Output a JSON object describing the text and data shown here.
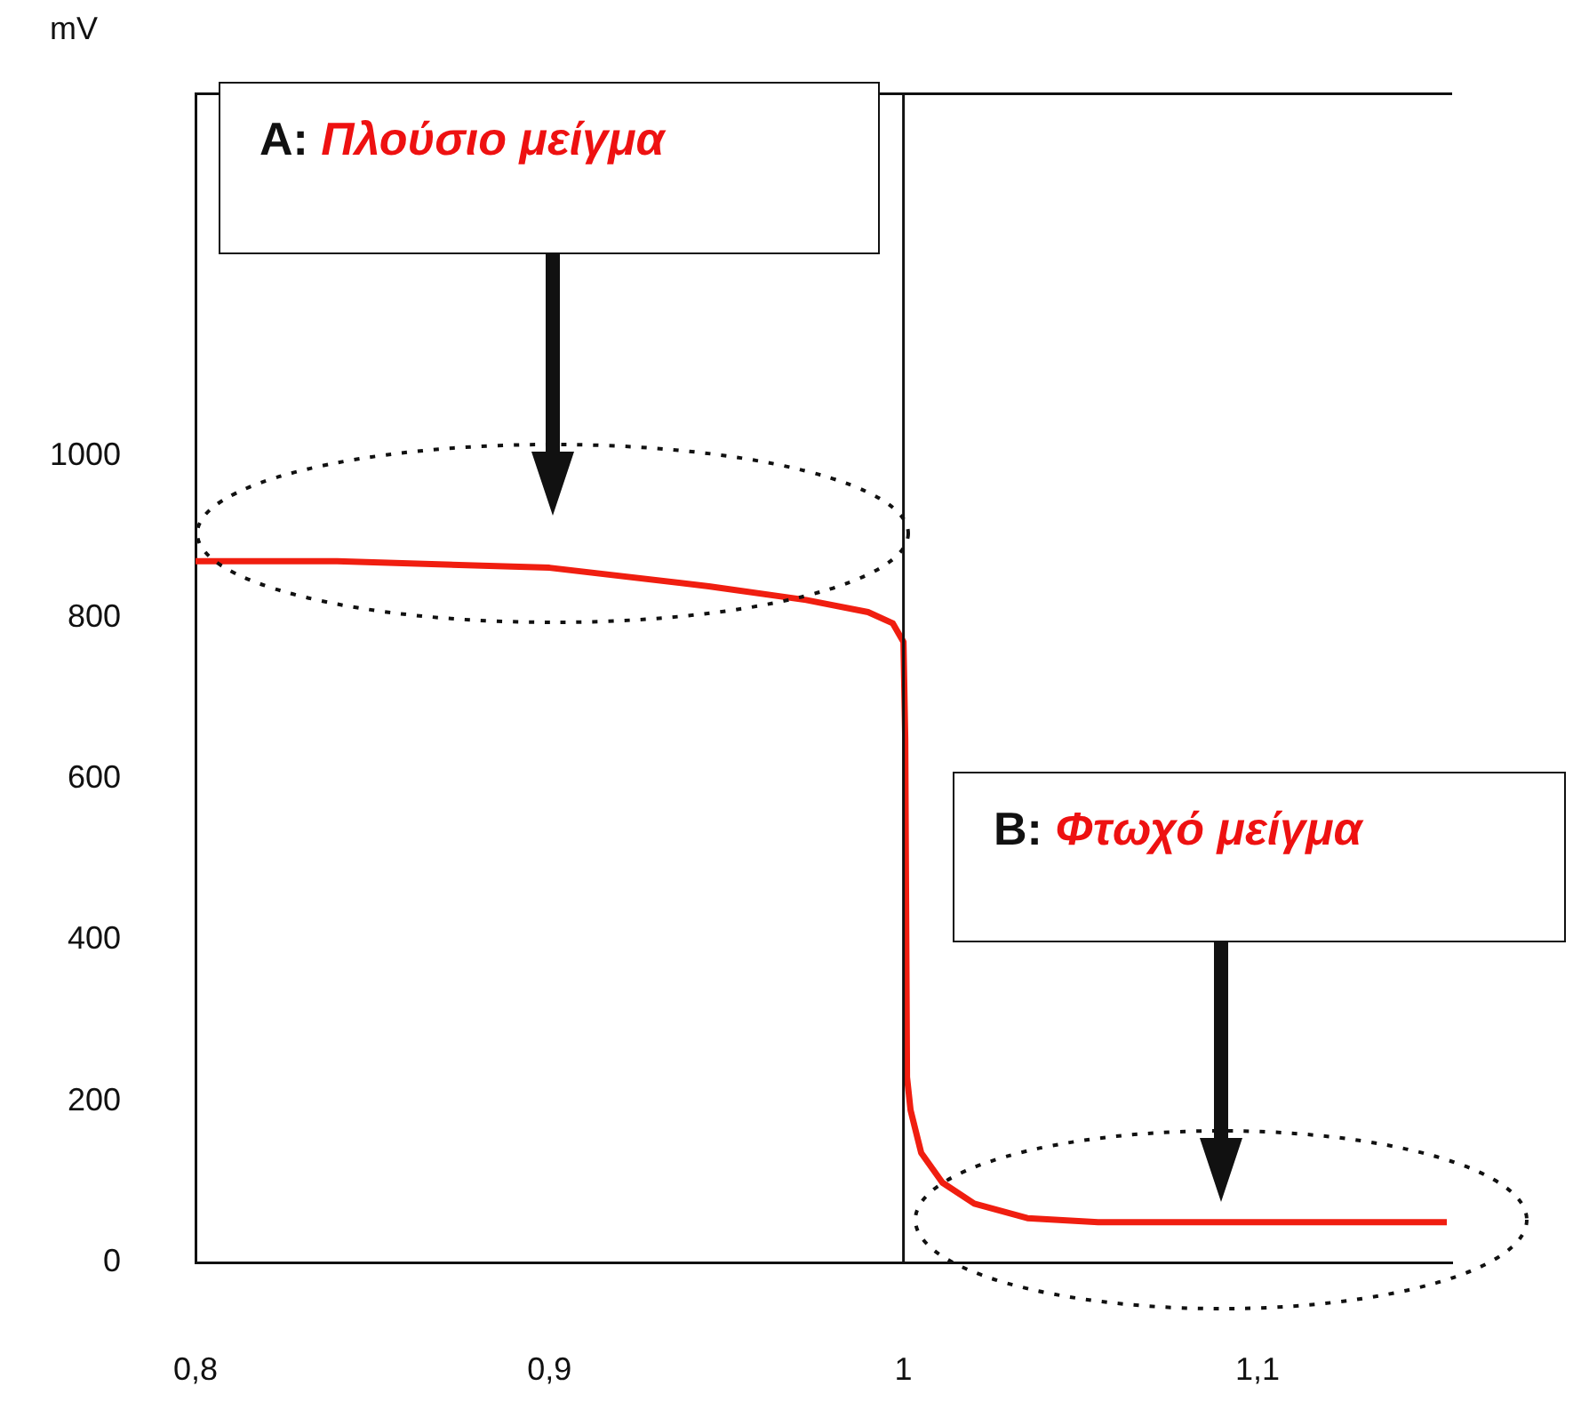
{
  "chart_data": {
    "type": "line",
    "ylabel": "mV",
    "x": [
      0.8,
      0.84,
      0.9,
      0.945,
      0.9725,
      0.99,
      0.997,
      1.0,
      1.0005,
      1.001,
      1.002,
      1.005,
      1.011,
      1.02,
      1.035,
      1.055,
      1.1535
    ],
    "series": [
      {
        "color": "#f01e10",
        "values": [
          870,
          870,
          862,
          839,
          822,
          807,
          793,
          770,
          650,
          230,
          189,
          136,
          99,
          73,
          55,
          50,
          50
        ]
      }
    ],
    "xlim": [
      0.8,
      1.155
    ],
    "ylim": [
      0,
      1450
    ],
    "xticks": [
      {
        "value": 0.8,
        "label": "0,8"
      },
      {
        "value": 0.9,
        "label": "0,9"
      },
      {
        "value": 1,
        "label": "1"
      },
      {
        "value": 1.1,
        "label": "1,1"
      }
    ],
    "yticks": [
      0,
      200,
      400,
      600,
      800,
      1000
    ],
    "ref_lines": [
      {
        "axis": "x",
        "value": 1
      }
    ],
    "annotations": [
      "A: Πλούσιο μείγμα",
      "B: Φτωχό μείγμα"
    ],
    "grid": false,
    "legend": false,
    "marker": "none",
    "line_style": "solid"
  }
}
